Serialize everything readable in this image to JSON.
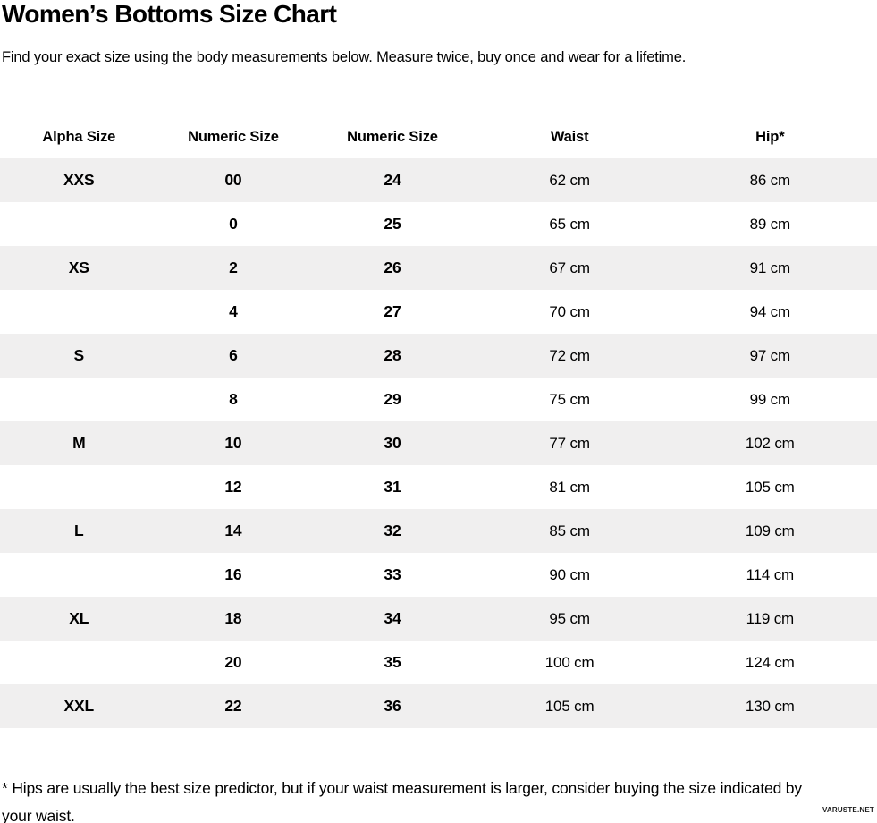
{
  "page": {
    "title": "Women’s Bottoms Size Chart",
    "subtitle": "Find your exact size using the body measurements below. Measure twice, buy once and wear for a lifetime.",
    "footnote": "* Hips are usually the best size predictor, but if your waist measurement is larger, consider buying the size indicated by your waist.",
    "watermark": "VARUSTE.NET",
    "colors": {
      "background": "#ffffff",
      "text": "#000000",
      "stripe": "#f0efef"
    }
  },
  "chart_data": {
    "type": "table",
    "title": "Women’s Bottoms Size Chart",
    "columns": [
      "Alpha Size",
      "Numeric Size",
      "Numeric Size",
      "Waist",
      "Hip*"
    ],
    "column_widths_pct": [
      18,
      17.2,
      19.1,
      21.3,
      24.4
    ],
    "rows": [
      [
        "XXS",
        "00",
        "24",
        "62 cm",
        "86 cm"
      ],
      [
        "",
        "0",
        "25",
        "65 cm",
        "89 cm"
      ],
      [
        "XS",
        "2",
        "26",
        "67 cm",
        "91 cm"
      ],
      [
        "",
        "4",
        "27",
        "70 cm",
        "94 cm"
      ],
      [
        "S",
        "6",
        "28",
        "72 cm",
        "97 cm"
      ],
      [
        "",
        "8",
        "29",
        "75 cm",
        "99 cm"
      ],
      [
        "M",
        "10",
        "30",
        "77 cm",
        "102 cm"
      ],
      [
        "",
        "12",
        "31",
        "81 cm",
        "105 cm"
      ],
      [
        "L",
        "14",
        "32",
        "85 cm",
        "109 cm"
      ],
      [
        "",
        "16",
        "33",
        "90 cm",
        "114 cm"
      ],
      [
        "XL",
        "18",
        "34",
        "95 cm",
        "119 cm"
      ],
      [
        "",
        "20",
        "35",
        "100 cm",
        "124 cm"
      ],
      [
        "XXL",
        "22",
        "36",
        "105 cm",
        "130 cm"
      ]
    ],
    "layout": {
      "striped_rows": "odd",
      "stripe_color": "#f0efef",
      "column_alignment": "center",
      "bold_columns": [
        0,
        1,
        2
      ]
    }
  }
}
